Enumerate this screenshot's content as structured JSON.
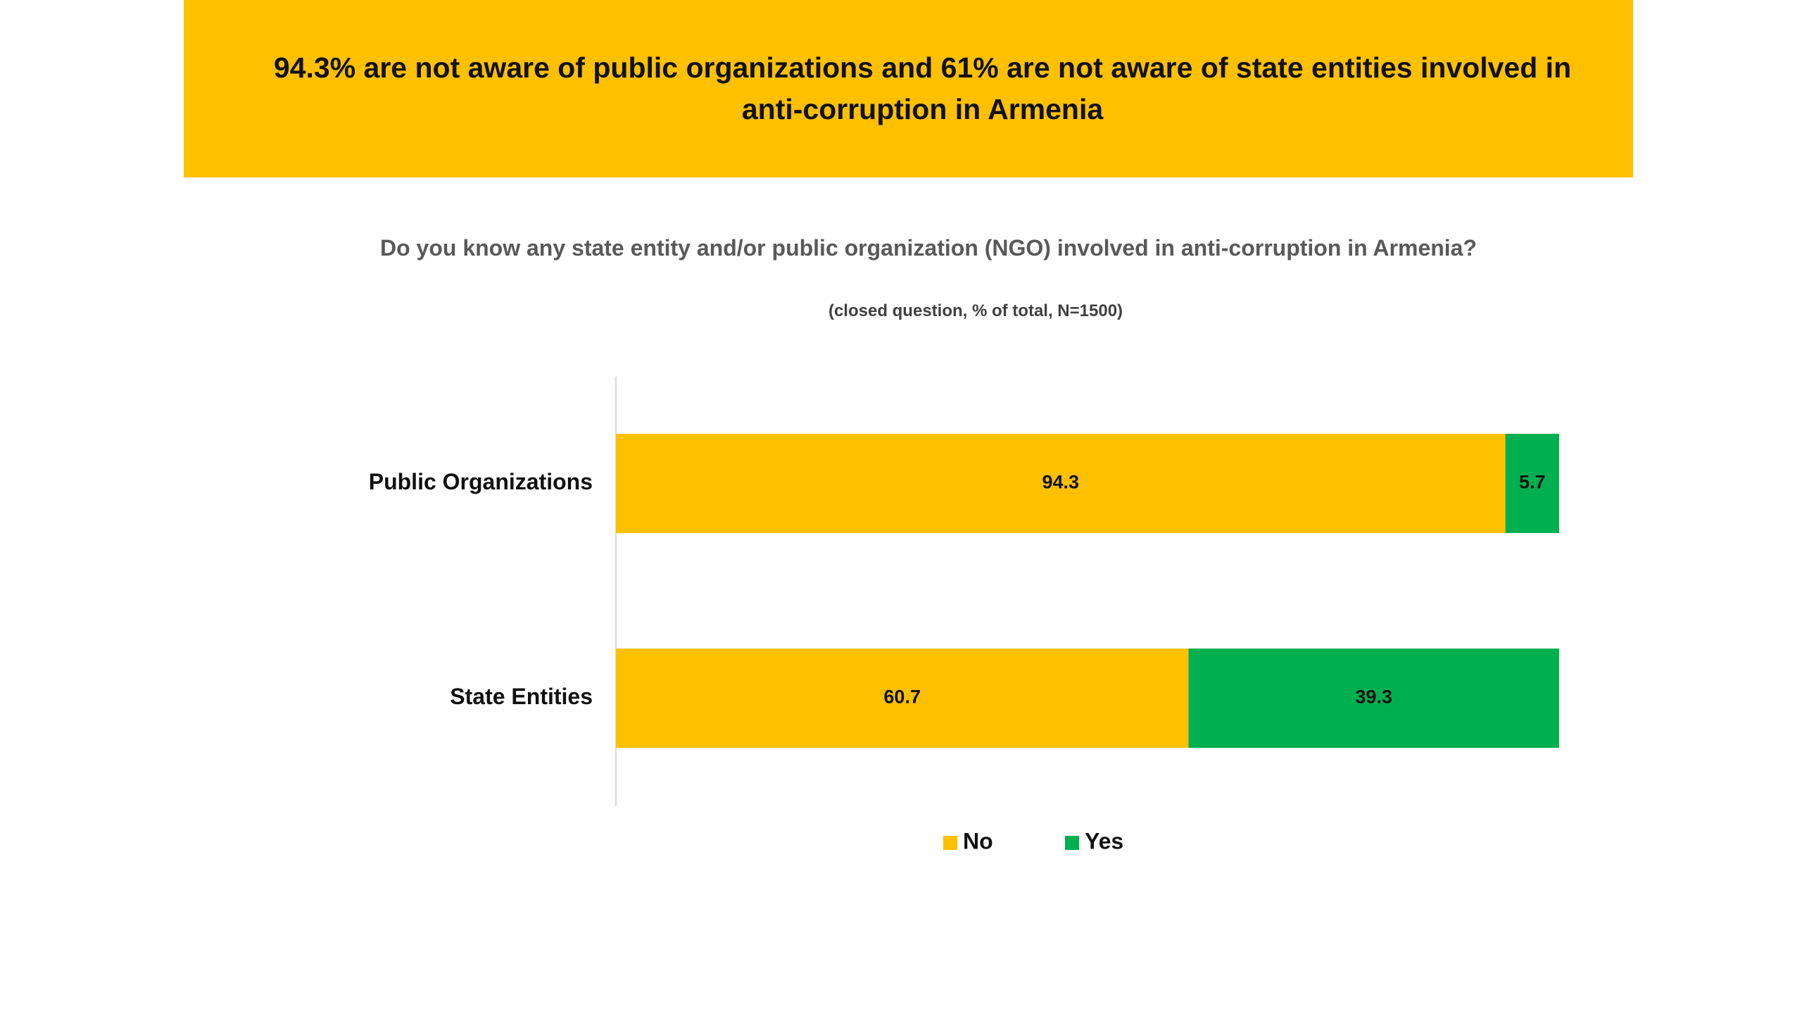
{
  "header": {
    "title": "94.3% are not aware of public organizations and 61% are not aware of state entities involved in anti-corruption in Armenia"
  },
  "chart_data": {
    "type": "bar",
    "orientation": "horizontal",
    "stacked": true,
    "title": "Do you know any state entity and/or public organization (NGO) involved in anti-corruption in Armenia?",
    "subtitle": "(closed question, %  of total, N=1500)",
    "categories": [
      "Public Organizations",
      "State Entities"
    ],
    "series": [
      {
        "name": "No",
        "values": [
          94.3,
          60.7
        ],
        "labels": [
          "94.3",
          "60.7"
        ],
        "color": "#ffc000"
      },
      {
        "name": "Yes",
        "values": [
          5.7,
          39.3
        ],
        "labels": [
          "5.7",
          "39.3"
        ],
        "color": "#00b050"
      }
    ],
    "xlim": [
      0,
      100
    ],
    "grid": false,
    "legend_position": "bottom"
  }
}
